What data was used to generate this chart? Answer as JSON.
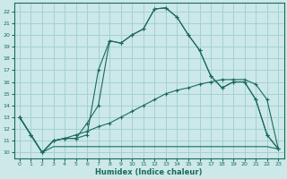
{
  "xlabel": "Humidex (Indice chaleur)",
  "xlim": [
    -0.5,
    23.5
  ],
  "ylim": [
    9.5,
    22.7
  ],
  "xticks": [
    0,
    1,
    2,
    3,
    4,
    5,
    6,
    7,
    8,
    9,
    10,
    11,
    12,
    13,
    14,
    15,
    16,
    17,
    18,
    19,
    20,
    21,
    22,
    23
  ],
  "yticks": [
    10,
    11,
    12,
    13,
    14,
    15,
    16,
    17,
    18,
    19,
    20,
    21,
    22
  ],
  "bg_color": "#cce8e8",
  "line_color": "#1a6b5a",
  "grid_color": "#9ecece",
  "line1_x": [
    0,
    1,
    2,
    3,
    4,
    5,
    6,
    7,
    8,
    9,
    10,
    11,
    12,
    13,
    14,
    15,
    16,
    17,
    18,
    19,
    20,
    21,
    22,
    23
  ],
  "line1_y": [
    13.0,
    11.5,
    10.0,
    11.0,
    11.2,
    11.2,
    11.5,
    17.0,
    19.5,
    19.3,
    20.0,
    20.5,
    22.2,
    22.3,
    21.5,
    20.0,
    18.7,
    16.5,
    15.5,
    16.0,
    16.0,
    14.5,
    11.5,
    10.3
  ],
  "line2_x": [
    0,
    1,
    2,
    3,
    4,
    5,
    6,
    7,
    8,
    9,
    10,
    11,
    12,
    13,
    14,
    15,
    16,
    17,
    18,
    19,
    20,
    21,
    22,
    23
  ],
  "line2_y": [
    13.0,
    11.5,
    10.0,
    11.0,
    11.2,
    11.2,
    12.5,
    14.0,
    19.5,
    19.3,
    20.0,
    20.5,
    22.2,
    22.3,
    21.5,
    20.0,
    18.7,
    16.5,
    15.5,
    16.0,
    16.0,
    14.5,
    11.5,
    10.3
  ],
  "line3_x": [
    0,
    1,
    2,
    3,
    4,
    5,
    6,
    7,
    8,
    9,
    10,
    11,
    12,
    13,
    14,
    15,
    16,
    17,
    18,
    19,
    20,
    21,
    22,
    23
  ],
  "line3_y": [
    13.0,
    11.5,
    10.0,
    11.0,
    11.2,
    11.5,
    11.8,
    12.2,
    12.5,
    13.0,
    13.5,
    14.0,
    14.5,
    15.0,
    15.3,
    15.5,
    15.8,
    16.0,
    16.2,
    16.2,
    16.2,
    15.8,
    14.5,
    10.3
  ],
  "line4_x": [
    0,
    1,
    2,
    3,
    4,
    5,
    6,
    7,
    8,
    9,
    10,
    11,
    12,
    13,
    14,
    15,
    16,
    17,
    18,
    19,
    20,
    21,
    22,
    23
  ],
  "line4_y": [
    13.0,
    11.5,
    10.0,
    10.5,
    10.5,
    10.5,
    10.5,
    10.5,
    10.5,
    10.5,
    10.5,
    10.5,
    10.5,
    10.5,
    10.5,
    10.5,
    10.5,
    10.5,
    10.5,
    10.5,
    10.5,
    10.5,
    10.5,
    10.3
  ]
}
